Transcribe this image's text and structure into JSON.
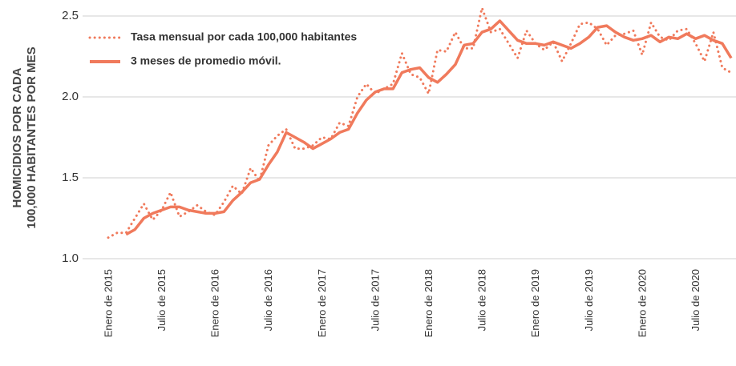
{
  "chart_data": {
    "type": "line",
    "y_label": [
      "HOMICIDIOS POR CADA",
      "100,000 HABITANTES POR MES"
    ],
    "categories": [
      "Enero de 2015",
      null,
      null,
      null,
      null,
      null,
      "Julio de 2015",
      null,
      null,
      null,
      null,
      null,
      "Enero de 2016",
      null,
      null,
      null,
      null,
      null,
      "Julio de 2016",
      null,
      null,
      null,
      null,
      null,
      "Enero de 2017",
      null,
      null,
      null,
      null,
      null,
      "Julio de 2017",
      null,
      null,
      null,
      null,
      null,
      "Enero de 2018",
      null,
      null,
      null,
      null,
      null,
      "Julio de 2018",
      null,
      null,
      null,
      null,
      null,
      "Enero de 2019",
      null,
      null,
      null,
      null,
      null,
      "Julio de 2019",
      null,
      null,
      null,
      null,
      null,
      "Enero de 2020",
      null,
      null,
      null,
      null,
      null,
      "Julio de 2020",
      null,
      null,
      null,
      null
    ],
    "series": [
      {
        "name": "Tasa mensual por cada 100,000 habitantes",
        "color": "#f07a5c",
        "style": "dotted",
        "values": [
          1.13,
          1.16,
          1.16,
          1.25,
          1.34,
          1.24,
          1.3,
          1.41,
          1.26,
          1.29,
          1.33,
          1.29,
          1.27,
          1.35,
          1.45,
          1.4,
          1.56,
          1.48,
          1.7,
          1.76,
          1.8,
          1.68,
          1.68,
          1.7,
          1.75,
          1.74,
          1.84,
          1.82,
          2.0,
          2.08,
          2.02,
          2.05,
          2.08,
          2.27,
          2.14,
          2.12,
          2.02,
          2.29,
          2.28,
          2.4,
          2.3,
          2.3,
          2.55,
          2.4,
          2.42,
          2.33,
          2.24,
          2.41,
          2.33,
          2.29,
          2.34,
          2.22,
          2.33,
          2.45,
          2.46,
          2.42,
          2.32,
          2.38,
          2.39,
          2.41,
          2.26,
          2.46,
          2.37,
          2.35,
          2.41,
          2.42,
          2.33,
          2.22,
          2.4,
          2.18,
          2.15
        ]
      },
      {
        "name": "3 meses de promedio móvil.",
        "color": "#f07a5c",
        "style": "solid",
        "values": [
          null,
          null,
          1.15,
          1.18,
          1.25,
          1.28,
          1.3,
          1.32,
          1.32,
          1.3,
          1.29,
          1.28,
          1.28,
          1.29,
          1.36,
          1.41,
          1.47,
          1.49,
          1.58,
          1.66,
          1.78,
          1.75,
          1.72,
          1.68,
          1.71,
          1.74,
          1.78,
          1.8,
          1.9,
          1.98,
          2.03,
          2.05,
          2.05,
          2.15,
          2.17,
          2.18,
          2.12,
          2.09,
          2.14,
          2.2,
          2.32,
          2.33,
          2.4,
          2.42,
          2.47,
          2.41,
          2.35,
          2.33,
          2.33,
          2.32,
          2.34,
          2.32,
          2.3,
          2.33,
          2.37,
          2.43,
          2.44,
          2.4,
          2.37,
          2.35,
          2.36,
          2.38,
          2.34,
          2.37,
          2.36,
          2.39,
          2.36,
          2.38,
          2.35,
          2.33,
          2.24
        ]
      }
    ],
    "ylim": [
      1.0,
      2.5
    ],
    "yticks": [
      {
        "value": 1,
        "label": "1.0"
      },
      1.5,
      {
        "value": 2,
        "label": "2.0"
      },
      2.5
    ],
    "grid": true
  }
}
